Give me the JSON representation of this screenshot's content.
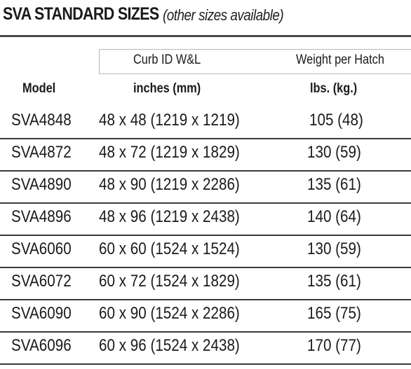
{
  "title": {
    "main": "SVA STANDARD SIZES",
    "sub": "(other sizes available)"
  },
  "header": {
    "curb_label": "Curb ID  W&L",
    "weight_label": "Weight per Hatch",
    "model_label": "Model",
    "curb_units": "inches (mm)",
    "weight_units": "lbs. (kg.)"
  },
  "rows": [
    {
      "model": "SVA4848",
      "curb": "48 x 48 (1219 x 1219)",
      "weight": "105 (48)"
    },
    {
      "model": "SVA4872",
      "curb": "48 x 72 (1219 x 1829)",
      "weight": "130 (59)"
    },
    {
      "model": "SVA4890",
      "curb": "48 x 90 (1219 x 2286)",
      "weight": "135 (61)"
    },
    {
      "model": "SVA4896",
      "curb": "48 x 96 (1219 x 2438)",
      "weight": "140 (64)"
    },
    {
      "model": "SVA6060",
      "curb": "60 x 60 (1524 x 1524)",
      "weight": "130 (59)"
    },
    {
      "model": "SVA6072",
      "curb": "60 x 72 (1524 x 1829)",
      "weight": "135 (61)"
    },
    {
      "model": "SVA6090",
      "curb": "60 x 90 (1524 x 2286)",
      "weight": "165 (75)"
    },
    {
      "model": "SVA6096",
      "curb": "60 x 96 (1524 x 2438)",
      "weight": "170 (77)"
    }
  ]
}
